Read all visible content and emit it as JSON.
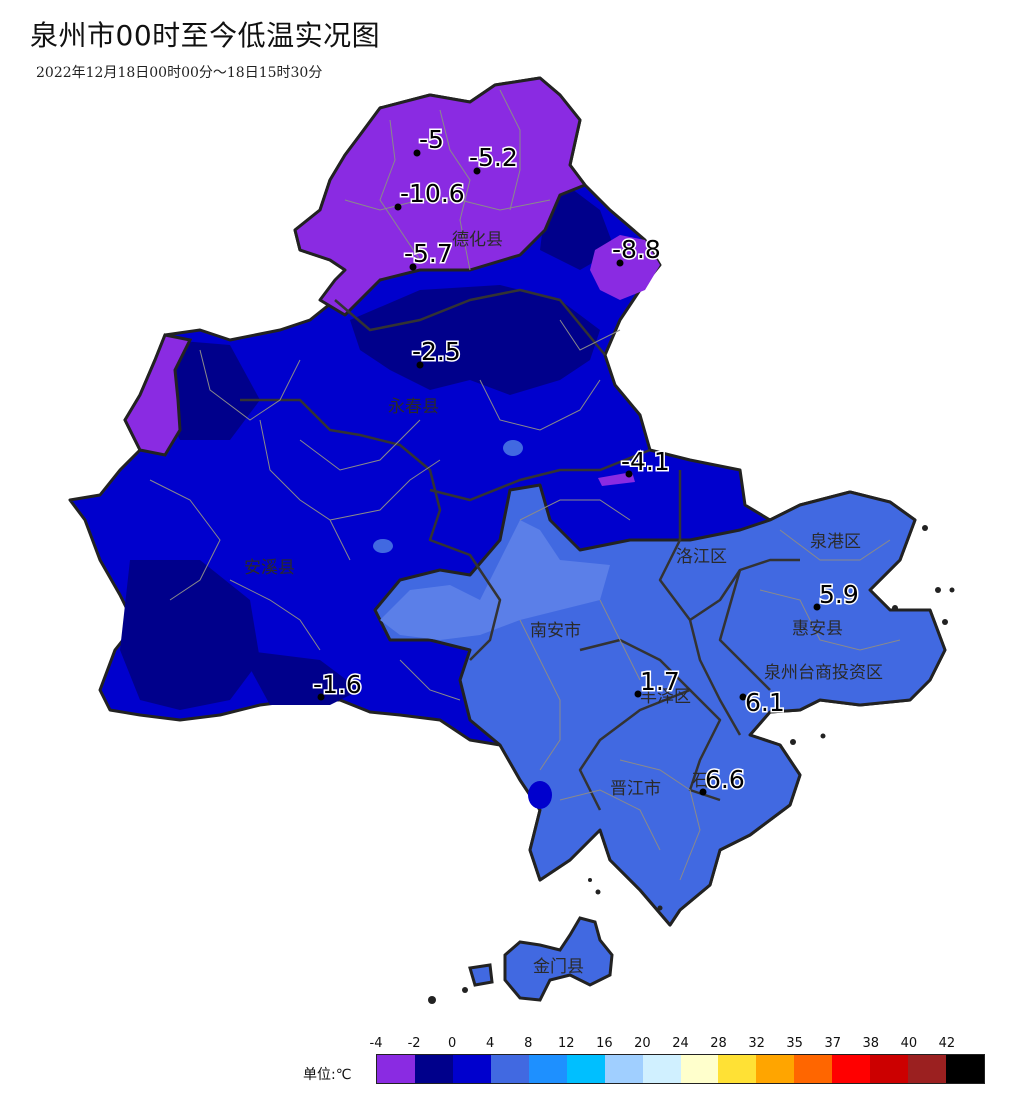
{
  "title": "泉州市00时至今低温实况图",
  "subtitle": "2022年12月18日00时00分～18日15时30分",
  "districts": {
    "dehua": "德化县",
    "yongchun": "永春县",
    "anxi": "安溪县",
    "nanan": "南安市",
    "luojiang": "洛江区",
    "quangang": "泉港区",
    "huian": "惠安县",
    "taishang": "泉州台商投资区",
    "fengze": "丰泽区",
    "jinjiang": "晋江市",
    "shishi": "石",
    "jinmen": "金门县"
  },
  "stations": [
    {
      "value": "-5"
    },
    {
      "value": "-5.2"
    },
    {
      "value": "-10.6"
    },
    {
      "value": "-5.7"
    },
    {
      "value": "-8.8"
    },
    {
      "value": "-2.5"
    },
    {
      "value": "-4.1"
    },
    {
      "value": "-1.6"
    },
    {
      "value": "5.9"
    },
    {
      "value": "1.7"
    },
    {
      "value": "6.1"
    },
    {
      "value": "6.6"
    }
  ],
  "legend": {
    "unit_label": "单位:℃",
    "ticks": [
      "-4",
      "-2",
      "0",
      "4",
      "8",
      "12",
      "16",
      "20",
      "24",
      "28",
      "32",
      "35",
      "37",
      "38",
      "40",
      "42"
    ],
    "colors": [
      "#8a2be2",
      "#00008b",
      "#0000cd",
      "#4169e1",
      "#1e90ff",
      "#00bfff",
      "#a0cfff",
      "#d0f0ff",
      "#ffffcc",
      "#ffe135",
      "#ffa500",
      "#ff6600",
      "#ff0000",
      "#cc0000",
      "#9b2020",
      "#000000"
    ]
  }
}
